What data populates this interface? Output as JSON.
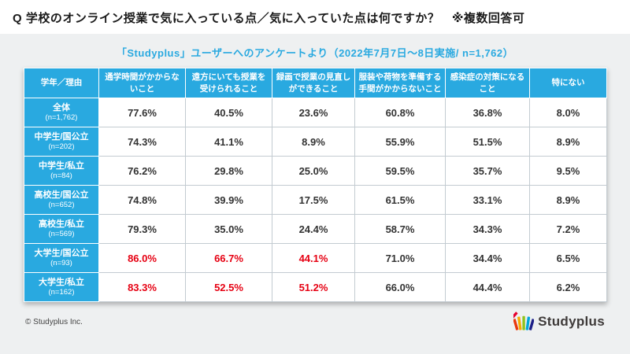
{
  "page": {
    "title": "Q 学校のオンライン授業で気に入っている点／気に入っていた点は何ですか？　※複数回答可",
    "subtitle": "「Studyplus」ユーザーへのアンケートより（2022年7月7日〜8日実施/ n=1,762）",
    "copyright": "© Studyplus Inc.",
    "logo_text": "Studyplus"
  },
  "colors": {
    "header_blue": "#29A9E0",
    "highlight_red": "#E60012"
  },
  "chart_data": {
    "type": "table",
    "title": "学校のオンライン授業で気に入っている点／気に入っていた点（複数回答可）",
    "columns": [
      "学年／理由",
      "通学時間がかからないこと",
      "遠方にいても授業を受けられること",
      "録画で授業の見直しができること",
      "服装や荷物を準備する手間がかからないこと",
      "感染症の対策になること",
      "特にない"
    ],
    "rows": [
      {
        "label": "全体",
        "n": "(n=1,762)",
        "values": [
          "77.6%",
          "40.5%",
          "23.6%",
          "60.8%",
          "36.8%",
          "8.0%"
        ],
        "highlighted": []
      },
      {
        "label": "中学生/国公立",
        "n": "(n=202)",
        "values": [
          "74.3%",
          "41.1%",
          "8.9%",
          "55.9%",
          "51.5%",
          "8.9%"
        ],
        "highlighted": []
      },
      {
        "label": "中学生/私立",
        "n": "(n=84)",
        "values": [
          "76.2%",
          "29.8%",
          "25.0%",
          "59.5%",
          "35.7%",
          "9.5%"
        ],
        "highlighted": []
      },
      {
        "label": "高校生/国公立",
        "n": "(n=652)",
        "values": [
          "74.8%",
          "39.9%",
          "17.5%",
          "61.5%",
          "33.1%",
          "8.9%"
        ],
        "highlighted": []
      },
      {
        "label": "高校生/私立",
        "n": "(n=569)",
        "values": [
          "79.3%",
          "35.0%",
          "24.4%",
          "58.7%",
          "34.3%",
          "7.2%"
        ],
        "highlighted": []
      },
      {
        "label": "大学生/国公立",
        "n": "(n=93)",
        "values": [
          "86.0%",
          "66.7%",
          "44.1%",
          "71.0%",
          "34.4%",
          "6.5%"
        ],
        "highlighted": [
          0,
          1,
          2
        ]
      },
      {
        "label": "大学生/私立",
        "n": "(n=162)",
        "values": [
          "83.3%",
          "52.5%",
          "51.2%",
          "66.0%",
          "44.4%",
          "6.2%"
        ],
        "highlighted": [
          0,
          1,
          2
        ]
      }
    ]
  }
}
